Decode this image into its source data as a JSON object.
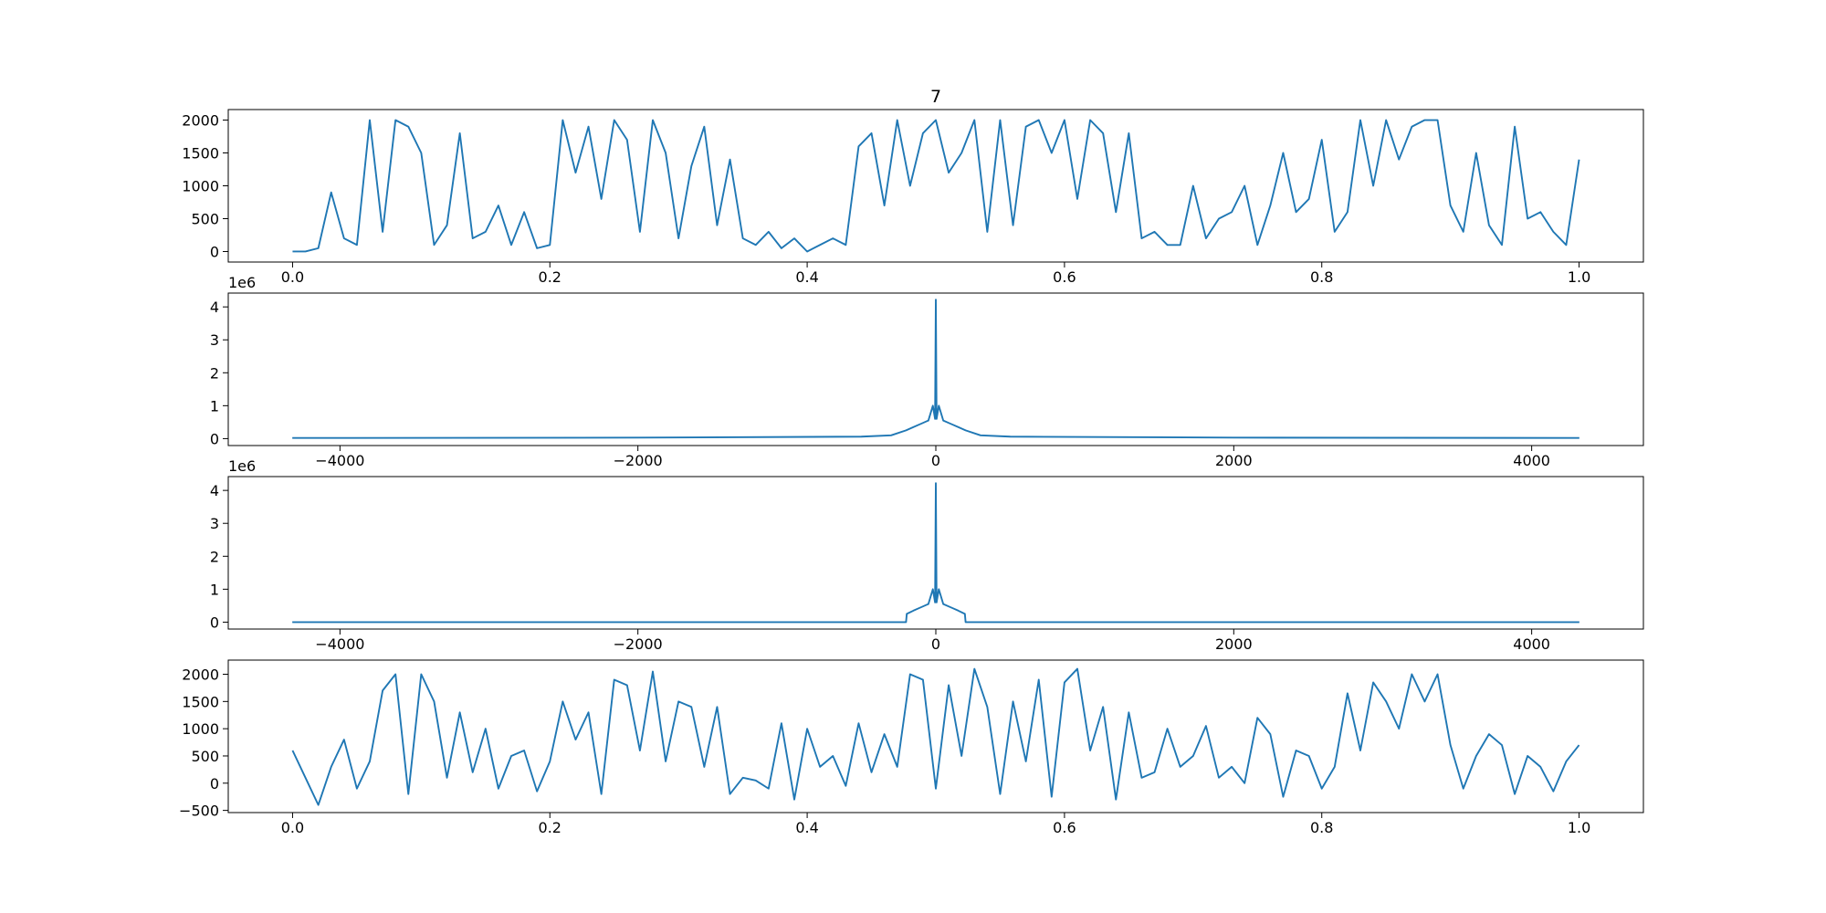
{
  "chart_data": [
    {
      "type": "line",
      "title": "7",
      "x": [
        0,
        0.01,
        0.02,
        0.03,
        0.04,
        0.05,
        0.06,
        0.07,
        0.08,
        0.09,
        0.1,
        0.11,
        0.12,
        0.13,
        0.14,
        0.15,
        0.16,
        0.17,
        0.18,
        0.19,
        0.2,
        0.21,
        0.22,
        0.23,
        0.24,
        0.25,
        0.26,
        0.27,
        0.28,
        0.29,
        0.3,
        0.31,
        0.32,
        0.33,
        0.34,
        0.35,
        0.36,
        0.37,
        0.38,
        0.39,
        0.4,
        0.41,
        0.42,
        0.43,
        0.44,
        0.45,
        0.46,
        0.47,
        0.48,
        0.49,
        0.5,
        0.51,
        0.52,
        0.53,
        0.54,
        0.55,
        0.56,
        0.57,
        0.58,
        0.59,
        0.6,
        0.61,
        0.62,
        0.63,
        0.64,
        0.65,
        0.66,
        0.67,
        0.68,
        0.69,
        0.7,
        0.71,
        0.72,
        0.73,
        0.74,
        0.75,
        0.76,
        0.77,
        0.78,
        0.79,
        0.8,
        0.81,
        0.82,
        0.83,
        0.84,
        0.85,
        0.86,
        0.87,
        0.88,
        0.89,
        0.9,
        0.91,
        0.92,
        0.93,
        0.94,
        0.95,
        0.96,
        0.97,
        0.98,
        0.99,
        1.0
      ],
      "series": [
        {
          "name": null,
          "color": "#1f77b4",
          "values": [
            0,
            0,
            50,
            900,
            200,
            100,
            2000,
            300,
            2000,
            1900,
            1500,
            100,
            400,
            1800,
            200,
            300,
            700,
            100,
            600,
            50,
            100,
            2000,
            1200,
            1900,
            800,
            2000,
            1700,
            300,
            2000,
            1500,
            200,
            1300,
            1900,
            400,
            1400,
            200,
            100,
            300,
            50,
            200,
            0,
            100,
            200,
            100,
            1600,
            1800,
            700,
            2000,
            1000,
            1800,
            2000,
            1200,
            1500,
            2000,
            300,
            2000,
            400,
            1900,
            2000,
            1500,
            2000,
            800,
            2000,
            1800,
            600,
            1800,
            200,
            300,
            100,
            100,
            1000,
            200,
            500,
            600,
            1000,
            100,
            700,
            1500,
            600,
            800,
            1700,
            300,
            600,
            2000,
            1000,
            2000,
            1400,
            1900,
            2000,
            2000,
            700,
            300,
            1500,
            400,
            100,
            1900,
            500,
            600,
            300,
            100,
            1400
          ]
        }
      ],
      "xlim": [
        -0.05,
        1.05
      ],
      "ylim": [
        -160,
        2160
      ],
      "xticks": [
        {
          "value": 0,
          "label": "0.0"
        },
        {
          "value": 0.2,
          "label": "0.2"
        },
        {
          "value": 0.4,
          "label": "0.4"
        },
        {
          "value": 0.6,
          "label": "0.6"
        },
        {
          "value": 0.8,
          "label": "0.8"
        },
        {
          "value": 1.0,
          "label": "1.0"
        }
      ],
      "yticks": [
        0,
        500,
        1000,
        1500,
        2000
      ]
    },
    {
      "type": "line",
      "y_offset": "1e6",
      "x": [
        -4320,
        -2000,
        -500,
        -300,
        -200,
        -150,
        -100,
        -50,
        -20,
        -5,
        0,
        5,
        20,
        50,
        100,
        150,
        200,
        300,
        500,
        2000,
        4320
      ],
      "series": [
        {
          "name": null,
          "color": "#1f77b4",
          "values": [
            0.02,
            0.03,
            0.06,
            0.1,
            0.25,
            0.35,
            0.45,
            0.55,
            1.0,
            0.6,
            4.22,
            0.6,
            1.0,
            0.55,
            0.45,
            0.35,
            0.25,
            0.1,
            0.06,
            0.03,
            0.02
          ]
        }
      ],
      "xlim": [
        -4750,
        4750
      ],
      "ylim": [
        -0.21,
        4.42
      ],
      "xticks": [
        {
          "value": -4000,
          "label": "−4000"
        },
        {
          "value": -2000,
          "label": "−2000"
        },
        0,
        2000,
        4000
      ],
      "yticks": [
        0,
        1,
        2,
        3,
        4
      ]
    },
    {
      "type": "line",
      "y_offset": "1e6",
      "x": [
        -4320,
        -200,
        -195,
        -150,
        -100,
        -50,
        -20,
        -5,
        0,
        5,
        20,
        50,
        100,
        150,
        195,
        200,
        4320
      ],
      "series": [
        {
          "name": null,
          "color": "#1f77b4",
          "values": [
            0,
            0,
            0.25,
            0.35,
            0.45,
            0.55,
            1.0,
            0.6,
            4.22,
            0.6,
            1.0,
            0.55,
            0.45,
            0.35,
            0.25,
            0,
            0
          ]
        }
      ],
      "xlim": [
        -4750,
        4750
      ],
      "ylim": [
        -0.21,
        4.42
      ],
      "xticks": [
        {
          "value": -4000,
          "label": "−4000"
        },
        {
          "value": -2000,
          "label": "−2000"
        },
        0,
        2000,
        4000
      ],
      "yticks": [
        0,
        1,
        2,
        3,
        4
      ]
    },
    {
      "type": "line",
      "x": [
        0,
        0.01,
        0.02,
        0.03,
        0.04,
        0.05,
        0.06,
        0.07,
        0.08,
        0.09,
        0.1,
        0.11,
        0.12,
        0.13,
        0.14,
        0.15,
        0.16,
        0.17,
        0.18,
        0.19,
        0.2,
        0.21,
        0.22,
        0.23,
        0.24,
        0.25,
        0.26,
        0.27,
        0.28,
        0.29,
        0.3,
        0.31,
        0.32,
        0.33,
        0.34,
        0.35,
        0.36,
        0.37,
        0.38,
        0.39,
        0.4,
        0.41,
        0.42,
        0.43,
        0.44,
        0.45,
        0.46,
        0.47,
        0.48,
        0.49,
        0.5,
        0.51,
        0.52,
        0.53,
        0.54,
        0.55,
        0.56,
        0.57,
        0.58,
        0.59,
        0.6,
        0.61,
        0.62,
        0.63,
        0.64,
        0.65,
        0.66,
        0.67,
        0.68,
        0.69,
        0.7,
        0.71,
        0.72,
        0.73,
        0.74,
        0.75,
        0.76,
        0.77,
        0.78,
        0.79,
        0.8,
        0.81,
        0.82,
        0.83,
        0.84,
        0.85,
        0.86,
        0.87,
        0.88,
        0.89,
        0.9,
        0.91,
        0.92,
        0.93,
        0.94,
        0.95,
        0.96,
        0.97,
        0.98,
        0.99,
        1.0
      ],
      "series": [
        {
          "name": null,
          "color": "#1f77b4",
          "values": [
            600,
            100,
            -400,
            300,
            800,
            -100,
            400,
            1700,
            2000,
            -200,
            2000,
            1500,
            100,
            1300,
            200,
            1000,
            -100,
            500,
            600,
            -150,
            400,
            1500,
            800,
            1300,
            -200,
            1900,
            1800,
            600,
            2050,
            400,
            1500,
            1400,
            300,
            1400,
            -200,
            100,
            50,
            -100,
            1100,
            -300,
            1000,
            300,
            500,
            -50,
            1100,
            200,
            900,
            300,
            2000,
            1900,
            -100,
            1800,
            500,
            2100,
            1400,
            -200,
            1500,
            400,
            1900,
            -250,
            1850,
            2100,
            600,
            1400,
            -300,
            1300,
            100,
            200,
            1000,
            300,
            500,
            1050,
            100,
            300,
            0,
            1200,
            900,
            -250,
            600,
            500,
            -100,
            300,
            1650,
            600,
            1850,
            1500,
            1000,
            2000,
            1500,
            2000,
            700,
            -100,
            500,
            900,
            700,
            -200,
            500,
            300,
            -150,
            400,
            700
          ]
        }
      ],
      "xlim": [
        -0.05,
        1.05
      ],
      "ylim": [
        -540,
        2260
      ],
      "xticks": [
        {
          "value": 0,
          "label": "0.0"
        },
        {
          "value": 0.2,
          "label": "0.2"
        },
        {
          "value": 0.4,
          "label": "0.4"
        },
        {
          "value": 0.6,
          "label": "0.6"
        },
        {
          "value": 0.8,
          "label": "0.8"
        },
        {
          "value": 1.0,
          "label": "1.0"
        }
      ],
      "yticks": [
        {
          "value": -500,
          "label": "−500"
        },
        0,
        500,
        1000,
        1500,
        2000
      ]
    }
  ]
}
